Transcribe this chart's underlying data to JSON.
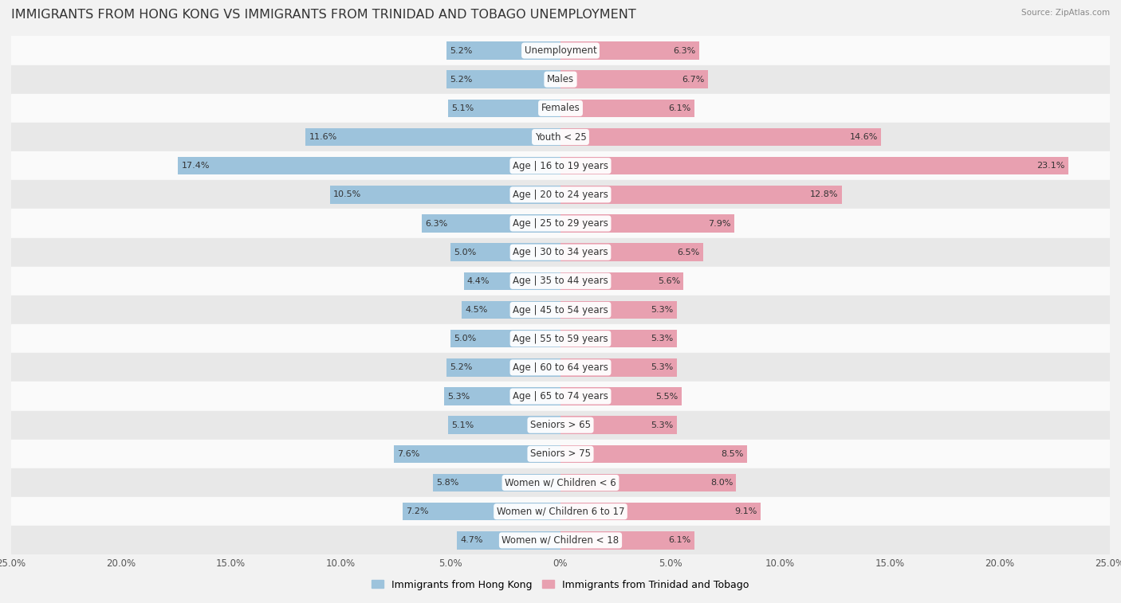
{
  "title": "IMMIGRANTS FROM HONG KONG VS IMMIGRANTS FROM TRINIDAD AND TOBAGO UNEMPLOYMENT",
  "source": "Source: ZipAtlas.com",
  "categories": [
    "Unemployment",
    "Males",
    "Females",
    "Youth < 25",
    "Age | 16 to 19 years",
    "Age | 20 to 24 years",
    "Age | 25 to 29 years",
    "Age | 30 to 34 years",
    "Age | 35 to 44 years",
    "Age | 45 to 54 years",
    "Age | 55 to 59 years",
    "Age | 60 to 64 years",
    "Age | 65 to 74 years",
    "Seniors > 65",
    "Seniors > 75",
    "Women w/ Children < 6",
    "Women w/ Children 6 to 17",
    "Women w/ Children < 18"
  ],
  "hk_values": [
    5.2,
    5.2,
    5.1,
    11.6,
    17.4,
    10.5,
    6.3,
    5.0,
    4.4,
    4.5,
    5.0,
    5.2,
    5.3,
    5.1,
    7.6,
    5.8,
    7.2,
    4.7
  ],
  "tt_values": [
    6.3,
    6.7,
    6.1,
    14.6,
    23.1,
    12.8,
    7.9,
    6.5,
    5.6,
    5.3,
    5.3,
    5.3,
    5.5,
    5.3,
    8.5,
    8.0,
    9.1,
    6.1
  ],
  "hk_color": "#9dc3dc",
  "tt_color": "#e8a0b0",
  "hk_label": "Immigrants from Hong Kong",
  "tt_label": "Immigrants from Trinidad and Tobago",
  "xlim": 25.0,
  "bg_color": "#f2f2f2",
  "row_light_color": "#fafafa",
  "row_dark_color": "#e8e8e8",
  "bar_height": 0.62,
  "title_fontsize": 11.5,
  "label_fontsize": 8.5,
  "value_fontsize": 8.0
}
